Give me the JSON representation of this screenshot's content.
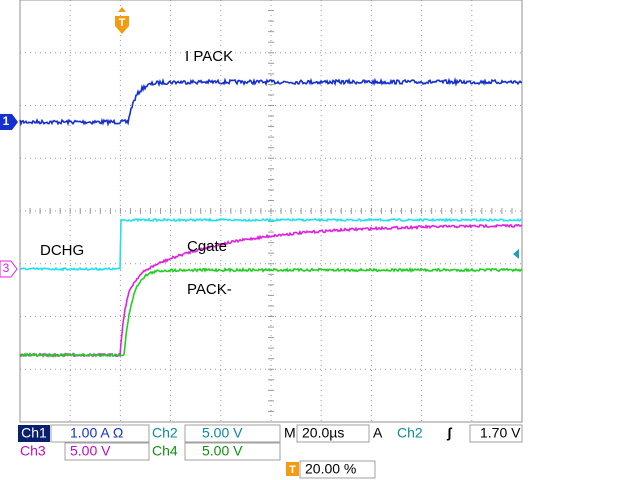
{
  "traces": {
    "labels": [
      "I PACK",
      "DCHG",
      "Cgate",
      "PACK-"
    ]
  },
  "markers": {
    "ch1": "1",
    "ch3": "3",
    "trigger": "T"
  },
  "status": {
    "row1": {
      "ch1": "Ch1",
      "ch1_scale": "1.00 A Ω",
      "ch2": "Ch2",
      "ch2_scale": "5.00 V",
      "timebase_label": "M",
      "timebase": "20.0µs",
      "trigger_mode": "A",
      "trigger_source": "Ch2",
      "trigger_slope": "ʃ",
      "trigger_level": "1.70 V"
    },
    "row2": {
      "ch3": "Ch3",
      "ch3_scale": "5.00 V",
      "ch4": "Ch4",
      "ch4_scale": "5.00 V"
    },
    "row3": {
      "trigger_marker": "T",
      "trigger_position": "20.00 %"
    }
  }
}
